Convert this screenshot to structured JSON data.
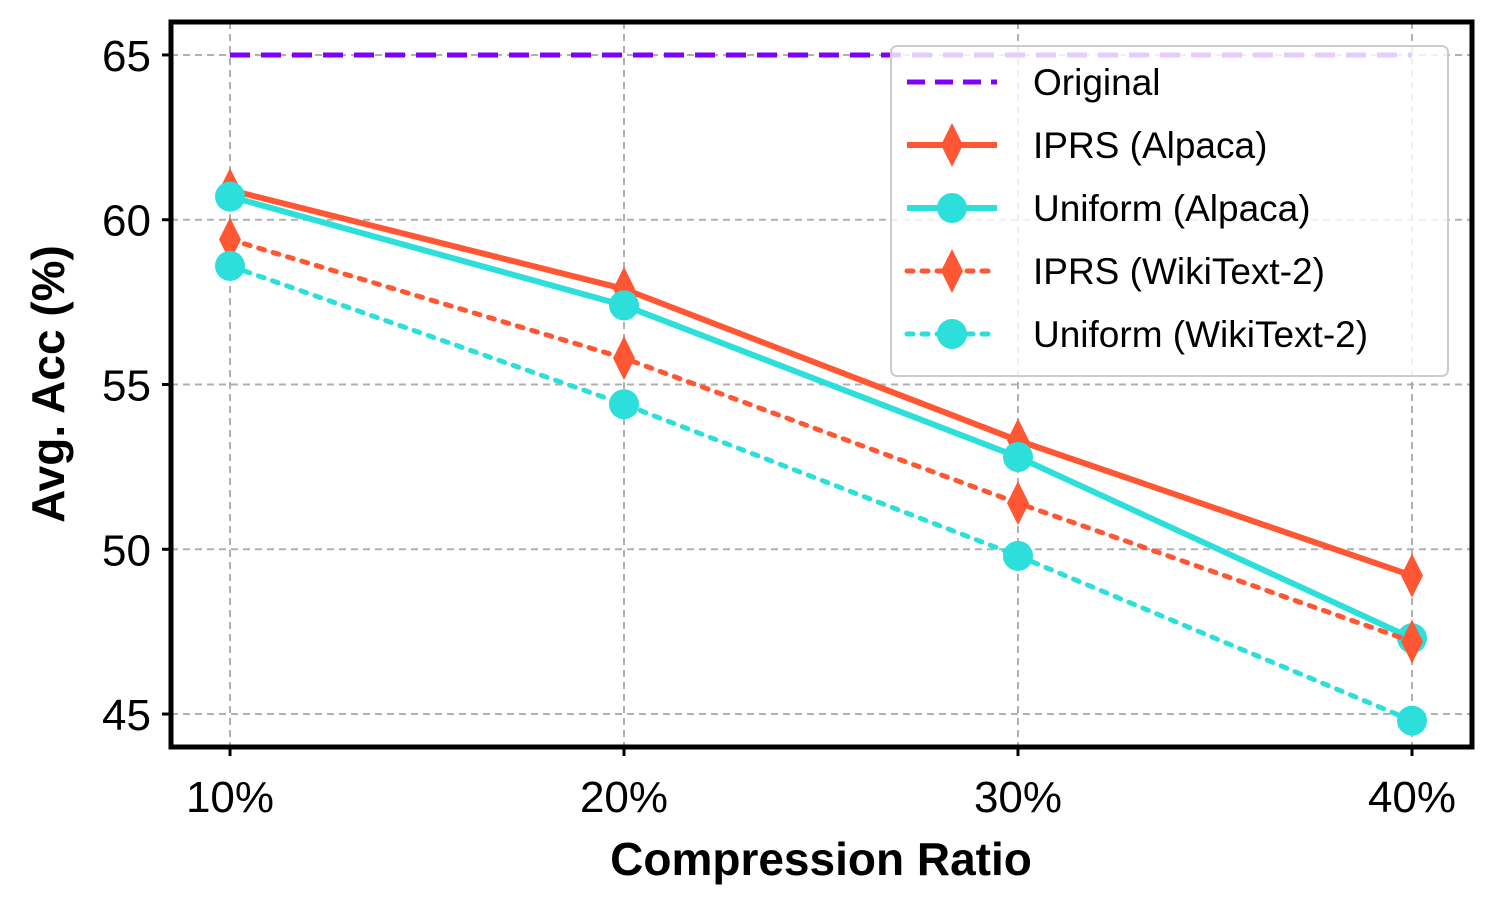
{
  "chart_data": {
    "type": "line",
    "title": "",
    "xlabel": "Compression Ratio",
    "ylabel": "Avg. Acc (%)",
    "categories": [
      "10%",
      "20%",
      "30%",
      "40%"
    ],
    "ylim": [
      44,
      66
    ],
    "yticks": [
      45,
      50,
      55,
      60,
      65
    ],
    "grid": true,
    "legend_position": "top-right",
    "series": [
      {
        "name": "Original",
        "values": [
          65,
          65,
          65,
          65
        ],
        "color": "#7F00FF",
        "line_style": "dashed",
        "marker": "none"
      },
      {
        "name": "IPRS (Alpaca)",
        "values": [
          60.9,
          57.9,
          53.3,
          49.2
        ],
        "color": "#FF5733",
        "line_style": "solid",
        "marker": "diamond"
      },
      {
        "name": "Uniform (Alpaca)",
        "values": [
          60.7,
          57.4,
          52.8,
          47.3
        ],
        "color": "#2DDFDB",
        "line_style": "solid",
        "marker": "circle"
      },
      {
        "name": "IPRS (WikiText-2)",
        "values": [
          59.4,
          55.8,
          51.4,
          47.2
        ],
        "color": "#FF5733",
        "line_style": "dotted",
        "marker": "diamond"
      },
      {
        "name": "Uniform (WikiText-2)",
        "values": [
          58.6,
          54.4,
          49.8,
          44.8
        ],
        "color": "#2DDFDB",
        "line_style": "dotted",
        "marker": "circle"
      }
    ]
  }
}
